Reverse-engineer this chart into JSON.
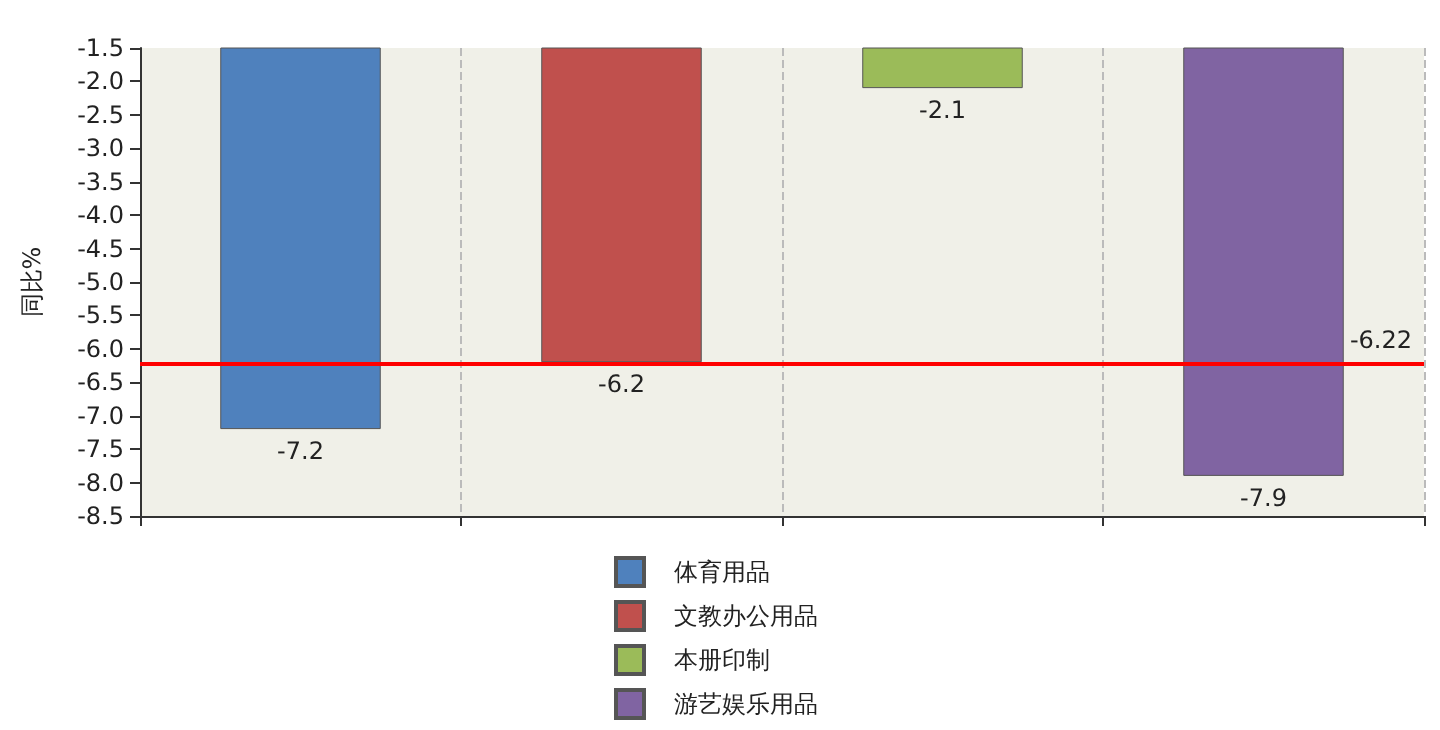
{
  "chart_data": {
    "type": "bar",
    "ylabel": "同比%",
    "categories": [
      null,
      null,
      null,
      null
    ],
    "series": [
      {
        "name": "体育用品",
        "color": "#4f81bd",
        "values": [
          -7.2,
          null,
          null,
          null
        ]
      },
      {
        "name": "文教办公用品",
        "color": "#c0504d",
        "values": [
          null,
          -6.2,
          null,
          null
        ]
      },
      {
        "name": "本册印制",
        "color": "#9bbb59",
        "values": [
          null,
          null,
          -2.1,
          null
        ]
      },
      {
        "name": "游艺娱乐用品",
        "color": "#8064a2",
        "values": [
          null,
          null,
          null,
          -7.9
        ]
      }
    ],
    "ylim": [
      -8.5,
      -1.5
    ],
    "yticks": [
      {
        "value": -8.5,
        "label": "-8.5"
      },
      {
        "value": -8,
        "label": "-8.0"
      },
      {
        "value": -7.5,
        "label": "-7.5"
      },
      {
        "value": -7,
        "label": "-7.0"
      },
      {
        "value": -6.5,
        "label": "-6.5"
      },
      {
        "value": -6,
        "label": "-6.0"
      },
      {
        "value": -5.5,
        "label": "-5.5"
      },
      {
        "value": -5,
        "label": "-5.0"
      },
      {
        "value": -4.5,
        "label": "-4.5"
      },
      {
        "value": -4,
        "label": "-4.0"
      },
      {
        "value": -3.5,
        "label": "-3.5"
      },
      {
        "value": -3,
        "label": "-3.0"
      },
      {
        "value": -2.5,
        "label": "-2.5"
      },
      {
        "value": -2,
        "label": "-2.0"
      },
      {
        "value": -1.5,
        "label": "-1.5"
      }
    ],
    "ref_lines": [
      {
        "axis": "y",
        "value": -6.22,
        "label": "-6.22",
        "color": "#ff0000"
      }
    ],
    "data_labels": true,
    "grid": "x",
    "legend": "bottom"
  }
}
